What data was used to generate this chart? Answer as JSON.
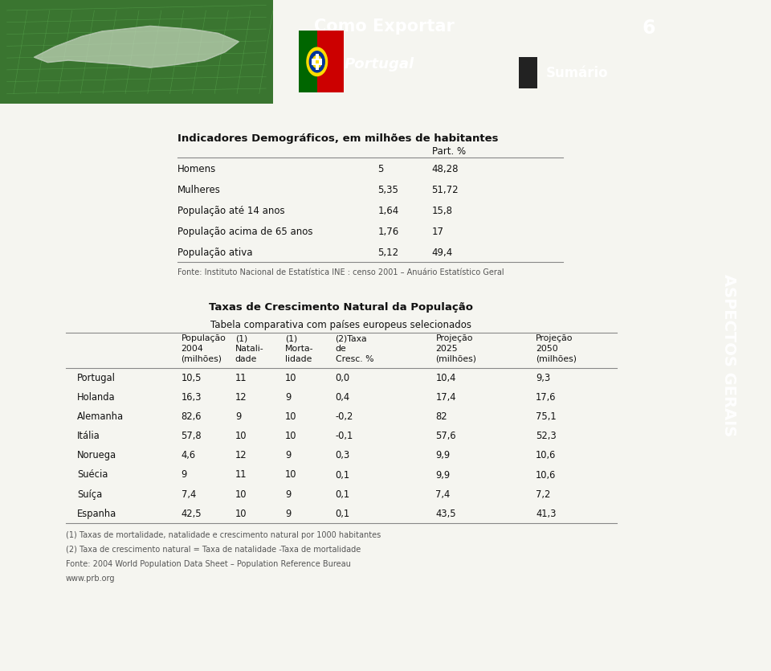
{
  "header_bg_color": "#4a8a3f",
  "header_dark_green": "#3a7530",
  "sidebar_bg_color": "#a0a0a0",
  "page_bg_color": "#f5f5f0",
  "white": "#ffffff",
  "title_main": "Como Exportar",
  "title_page_num": "6",
  "title_country": "Portugal",
  "title_sumario": "Sumário",
  "section_label": "ASPECTOS GERAIS",
  "section1_title": "Indicadores Demográficos, em milhões de habitantes",
  "table1_footnote": "Fonte: Instituto Nacional de Estatística INE : censo 2001 – Anuário Estatístico Geral",
  "table1_rows": [
    [
      "Homens",
      "5",
      "48,28"
    ],
    [
      "Mulheres",
      "5,35",
      "51,72"
    ],
    [
      "População até 14 anos",
      "1,64",
      "15,8"
    ],
    [
      "População acima de 65 anos",
      "1,76",
      "17"
    ],
    [
      "População ativa",
      "5,12",
      "49,4"
    ]
  ],
  "section2_title": "Taxas de Crescimento Natural da População",
  "section2_subtitle": "Tabela comparativa com países europeus selecionados",
  "table2_col_headers": [
    "População\n2004\n(milhões)",
    "(1)\nNatali-\ndade",
    "(1)\nMorta-\nlidade",
    "(2)Taxa\nde\nCresc. %",
    "Projeção\n2025\n(milhões)",
    "Projeção\n2050\n(milhões)"
  ],
  "table2_rows": [
    [
      "Portugal",
      "10,5",
      "11",
      "10",
      "0,0",
      "10,4",
      "9,3"
    ],
    [
      "Holanda",
      "16,3",
      "12",
      "9",
      "0,4",
      "17,4",
      "17,6"
    ],
    [
      "Alemanha",
      "82,6",
      "9",
      "10",
      "-0,2",
      "82",
      "75,1"
    ],
    [
      "Itália",
      "57,8",
      "10",
      "10",
      "-0,1",
      "57,6",
      "52,3"
    ],
    [
      "Noruega",
      "4,6",
      "12",
      "9",
      "0,3",
      "9,9",
      "10,6"
    ],
    [
      "Suécia",
      "9",
      "11",
      "10",
      "0,1",
      "9,9",
      "10,6"
    ],
    [
      "Suíça",
      "7,4",
      "10",
      "9",
      "0,1",
      "7,4",
      "7,2"
    ],
    [
      "Espanha",
      "42,5",
      "10",
      "9",
      "0,1",
      "43,5",
      "41,3"
    ]
  ],
  "table2_footnote1": "(1) Taxas de mortalidade, natalidade e crescimento natural por 1000 habitantes",
  "table2_footnote2": "(2) Taxa de crescimento natural = Taxa de natalidade -Taxa de mortalidade",
  "table2_footnote3": "Fonte: 2004 World Population Data Sheet – Population Reference Bureau",
  "table2_footnote4": "www.prb.org"
}
